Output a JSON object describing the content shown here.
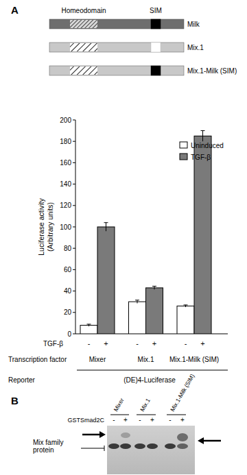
{
  "panel_a": {
    "label": "A",
    "homeodomain_label": "Homeodomain",
    "sim_label": "SIM",
    "constructs": [
      {
        "name": "Milk",
        "milk_body": true,
        "sim_filled": true
      },
      {
        "name": "Mix.1",
        "milk_body": false,
        "sim_filled": false
      },
      {
        "name": "Mix.1-Milk (SIM)",
        "milk_body": false,
        "sim_filled": true
      }
    ]
  },
  "chart_data": {
    "type": "bar",
    "ylabel": [
      "Luciferase activity",
      "(Arbitrary units)"
    ],
    "categories": [
      "Mixer",
      "Mix.1",
      "Mix.1-Milk (SIM)"
    ],
    "series": [
      {
        "name": "Uninduced",
        "color": "#ffffff",
        "values": [
          8,
          30,
          26
        ],
        "errors": [
          1,
          1.5,
          1
        ]
      },
      {
        "name": "TGF-β",
        "color": "#7a7a7a",
        "values": [
          100,
          43,
          185
        ],
        "errors": [
          4,
          1.5,
          5
        ]
      }
    ],
    "ylim": [
      0,
      200
    ],
    "yticks": [
      0,
      20,
      40,
      60,
      80,
      100,
      120,
      140,
      160,
      180,
      200
    ],
    "legend": "upper right",
    "grid": false,
    "tgf_row": {
      "label": "TGF-β",
      "values": [
        "-",
        "+",
        "-",
        "+",
        "-",
        "+"
      ]
    },
    "factor_label": "Transcription factor",
    "reporter_label": "Reporter",
    "reporter": "(DE)4-Luciferase"
  },
  "panel_b": {
    "label": "B",
    "lane_header": "GSTSmad2C",
    "signs": [
      "-",
      "+",
      "-",
      "+",
      "-",
      "+"
    ],
    "proteins": [
      "Mixer",
      "Mix.1",
      "Mix.1-Milk (SIM)"
    ],
    "band_label": [
      "Mix family",
      "protein"
    ]
  }
}
